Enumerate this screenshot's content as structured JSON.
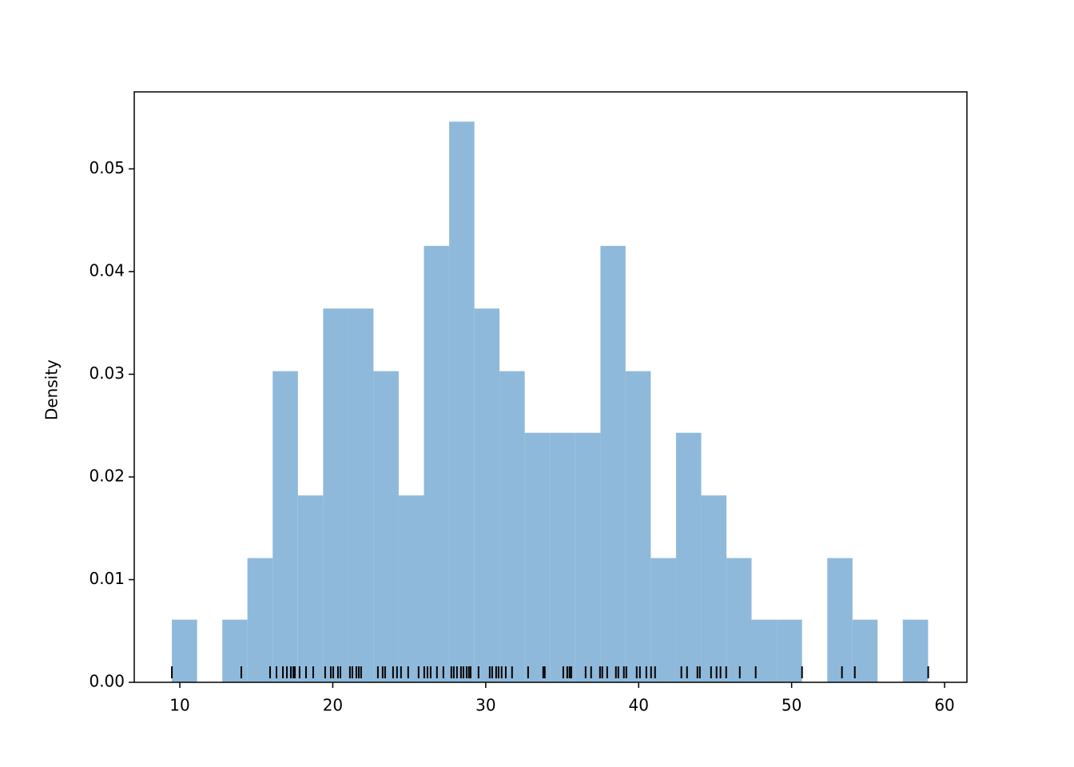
{
  "chart_data": {
    "type": "histogram",
    "ylabel": "Density",
    "color": "#8fb9da",
    "rug_color": "#000000",
    "bins": [
      9.48,
      11.13,
      12.78,
      14.42,
      16.07,
      17.72,
      19.37,
      21.02,
      22.66,
      24.31,
      25.96,
      27.61,
      29.26,
      30.9,
      32.55,
      34.2,
      35.85,
      37.5,
      39.14,
      40.79,
      42.44,
      44.09,
      45.74,
      47.38,
      49.03,
      50.68,
      52.33,
      53.98,
      55.62,
      57.27,
      58.92
    ],
    "values": [
      0.0061,
      0,
      0.0061,
      0.0121,
      0.0303,
      0.0182,
      0.0364,
      0.0364,
      0.0303,
      0.0182,
      0.0425,
      0.0546,
      0.0364,
      0.0303,
      0.0243,
      0.0243,
      0.0243,
      0.0425,
      0.0303,
      0.0121,
      0.0243,
      0.0182,
      0.0121,
      0.0061,
      0.0061,
      0,
      0.0121,
      0.0061,
      0,
      0.0061
    ],
    "rug": [
      9.48,
      14.02,
      15.9,
      16.32,
      16.74,
      17.0,
      17.26,
      17.42,
      17.52,
      17.83,
      18.25,
      18.72,
      19.5,
      19.87,
      20.03,
      20.34,
      20.5,
      21.12,
      21.28,
      21.54,
      21.7,
      21.85,
      22.95,
      23.26,
      23.42,
      23.94,
      24.2,
      24.46,
      24.93,
      25.61,
      25.98,
      26.19,
      26.4,
      26.81,
      27.23,
      27.75,
      27.91,
      28.12,
      28.38,
      28.54,
      28.75,
      28.9,
      29.01,
      29.53,
      30.26,
      30.42,
      30.68,
      30.84,
      31.04,
      31.31,
      31.72,
      32.77,
      33.76,
      33.86,
      35.07,
      35.33,
      35.48,
      35.59,
      36.53,
      36.89,
      37.47,
      37.62,
      37.94,
      38.51,
      38.67,
      39.03,
      39.19,
      39.87,
      40.08,
      40.5,
      40.81,
      41.07,
      42.79,
      43.16,
      43.84,
      44.0,
      44.73,
      45.09,
      45.35,
      45.72,
      46.61,
      47.65,
      50.68,
      53.29,
      54.13,
      58.93
    ],
    "xlim": [
      7.02,
      61.46
    ],
    "xticks": [
      10,
      20,
      30,
      40,
      50,
      60
    ],
    "ylim": [
      0,
      0.0575
    ],
    "yticks": [
      {
        "value": 0,
        "label": "0.00"
      },
      {
        "value": 0.01,
        "label": "0.01"
      },
      {
        "value": 0.02,
        "label": "0.02"
      },
      {
        "value": 0.03,
        "label": "0.03"
      },
      {
        "value": 0.04,
        "label": "0.04"
      },
      {
        "value": 0.05,
        "label": "0.05"
      }
    ]
  }
}
